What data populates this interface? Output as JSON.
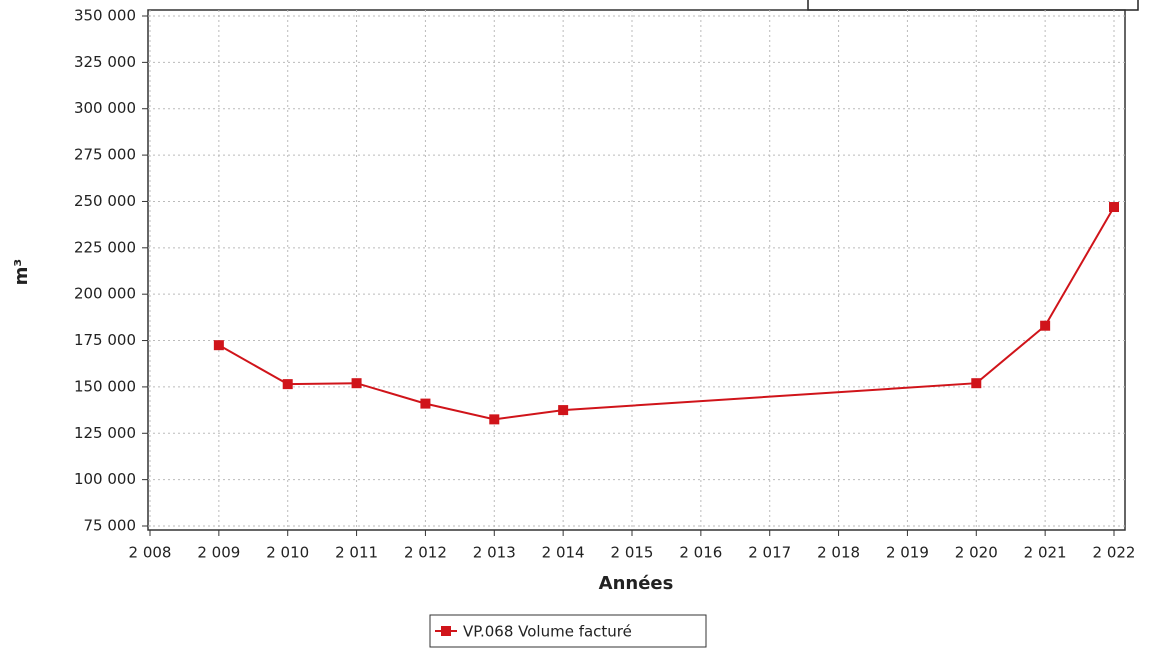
{
  "chart_data": {
    "type": "line",
    "x_label": "Années",
    "y_label": "m³",
    "x": [
      2009,
      2010,
      2011,
      2012,
      2013,
      2014,
      2020,
      2021,
      2022
    ],
    "series": [
      {
        "name": "VP.068 Volume facturé",
        "color": "#d0141a",
        "values": [
          172500,
          151500,
          152000,
          141000,
          132500,
          137500,
          152000,
          183000,
          247000
        ]
      }
    ],
    "xlim": [
      2008,
      2022
    ],
    "xticks": [
      {
        "value": 2008,
        "label": "2 008"
      },
      {
        "value": 2009,
        "label": "2 009"
      },
      {
        "value": 2010,
        "label": "2 010"
      },
      {
        "value": 2011,
        "label": "2 011"
      },
      {
        "value": 2012,
        "label": "2 012"
      },
      {
        "value": 2013,
        "label": "2 013"
      },
      {
        "value": 2014,
        "label": "2 014"
      },
      {
        "value": 2015,
        "label": "2 015"
      },
      {
        "value": 2016,
        "label": "2 016"
      },
      {
        "value": 2017,
        "label": "2 017"
      },
      {
        "value": 2018,
        "label": "2 018"
      },
      {
        "value": 2019,
        "label": "2 019"
      },
      {
        "value": 2020,
        "label": "2 020"
      },
      {
        "value": 2021,
        "label": "2 021"
      },
      {
        "value": 2022,
        "label": "2 022"
      }
    ],
    "ylim": [
      75000,
      350000
    ],
    "yticks": [
      {
        "value": 75000,
        "label": "75 000"
      },
      {
        "value": 100000,
        "label": "100 000"
      },
      {
        "value": 125000,
        "label": "125 000"
      },
      {
        "value": 150000,
        "label": "150 000"
      },
      {
        "value": 175000,
        "label": "175 000"
      },
      {
        "value": 200000,
        "label": "200 000"
      },
      {
        "value": 225000,
        "label": "225 000"
      },
      {
        "value": 250000,
        "label": "250 000"
      },
      {
        "value": 275000,
        "label": "275 000"
      },
      {
        "value": 300000,
        "label": "300 000"
      },
      {
        "value": 325000,
        "label": "325 000"
      },
      {
        "value": 350000,
        "label": "350 000"
      }
    ],
    "grid": true,
    "legend": "bottom"
  }
}
